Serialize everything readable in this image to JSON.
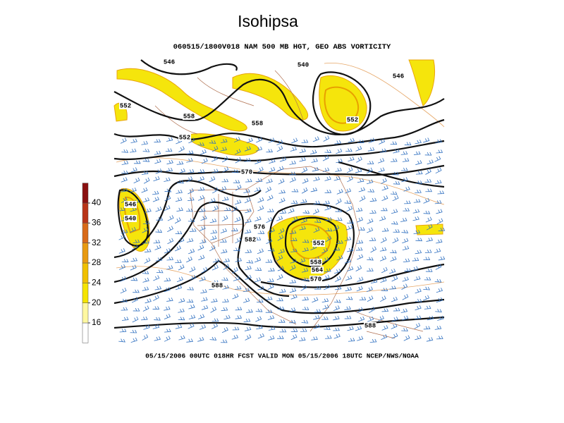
{
  "title": "Isohipsa",
  "map": {
    "header": "060515/1800V018 NAM 500 MB HGT, GEO ABS VORTICITY",
    "footer": "05/15/2006 00UTC 018HR FCST VALID MON 05/15/2006 18UTC  NCEP/NWS/NOAA",
    "contour_labels": [
      "546",
      "540",
      "546",
      "552",
      "558",
      "558",
      "552",
      "570",
      "546",
      "540",
      "576",
      "582",
      "552",
      "558",
      "564",
      "570",
      "588",
      "588",
      "552"
    ]
  },
  "colorbar": {
    "ticks": [
      16,
      20,
      24,
      28,
      32,
      36,
      40
    ],
    "colors": [
      "#ffffff",
      "#fff8a0",
      "#f5e400",
      "#f0c000",
      "#e89a10",
      "#d86a18",
      "#b83418",
      "#8a1010"
    ]
  }
}
